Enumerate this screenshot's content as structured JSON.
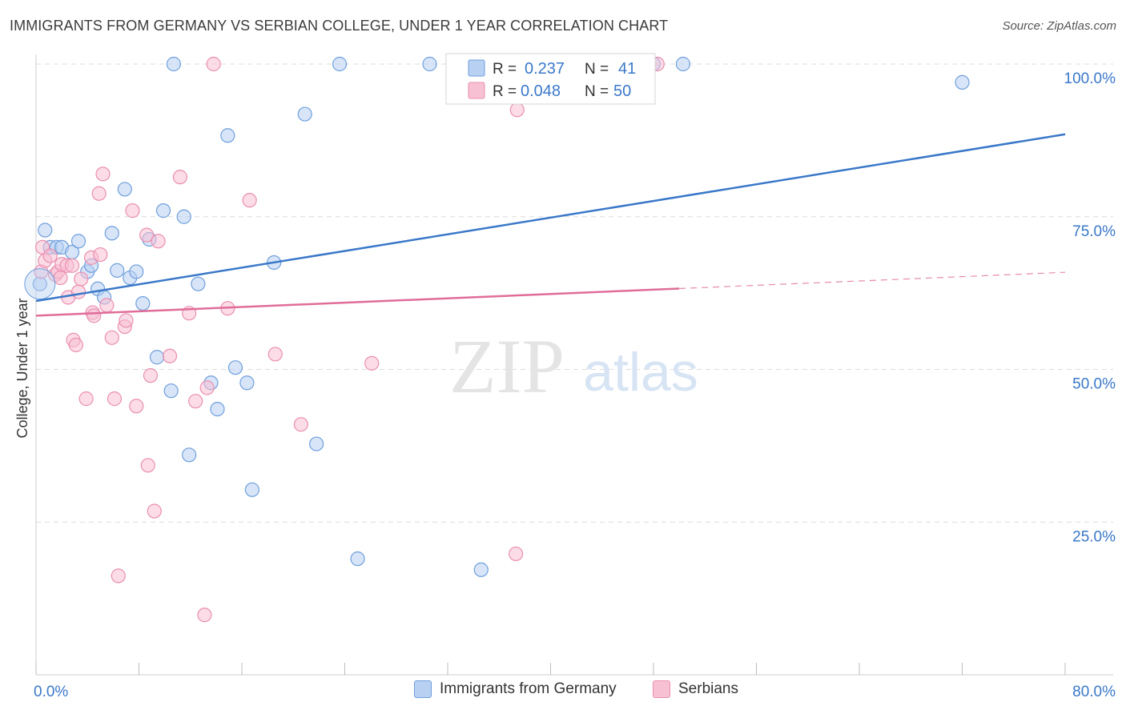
{
  "title": "IMMIGRANTS FROM GERMANY VS SERBIAN COLLEGE, UNDER 1 YEAR CORRELATION CHART",
  "source": "Source: ZipAtlas.com",
  "watermark": {
    "zip": "ZIP",
    "atlas": "atlas"
  },
  "colors": {
    "blue": "#3a78c9",
    "blue_fill": "#b8d0f2",
    "blue_stroke": "#6f9fdc",
    "pink": "#e06d98",
    "pink_fill": "#f8c0d3",
    "pink_stroke": "#ea8fb0",
    "axis_label": "#3a78c9",
    "grid": "#dcdcdc"
  },
  "stats_legend": [
    {
      "r_label": "R =",
      "r_value": "0.237",
      "n_label": "N =",
      "n_value": "41",
      "color": "blue"
    },
    {
      "r_label": "R =",
      "r_value": "0.048",
      "n_label": "N =",
      "n_value": "50",
      "color": "pink"
    }
  ],
  "bottom_legend": [
    {
      "label": "Immigrants from Germany",
      "color": "blue"
    },
    {
      "label": "Serbians",
      "color": "pink"
    }
  ],
  "chart_data": {
    "type": "scatter",
    "title": "IMMIGRANTS FROM GERMANY VS SERBIAN COLLEGE, UNDER 1 YEAR CORRELATION CHART",
    "xlabel": "",
    "ylabel": "College, Under 1 year",
    "xlim": [
      0,
      80
    ],
    "ylim": [
      0,
      100
    ],
    "x_tick_labels": [
      {
        "value": 0,
        "label": "0.0%"
      },
      {
        "value": 80,
        "label": "80.0%"
      }
    ],
    "y_tick_labels": [
      {
        "value": 100,
        "label": "100.0%"
      },
      {
        "value": 75,
        "label": "75.0%"
      },
      {
        "value": 50,
        "label": "50.0%"
      },
      {
        "value": 25,
        "label": "25.0%"
      }
    ],
    "x_minor_ticks": [
      0,
      8,
      16,
      24,
      32,
      40,
      48,
      56,
      64,
      72,
      80
    ],
    "grid": true,
    "legend_position": "top-center",
    "series": [
      {
        "name": "Immigrants from Germany",
        "color": "blue",
        "points": [
          [
            0.3,
            64.0
          ],
          [
            0.7,
            72.8
          ],
          [
            1.1,
            70.0
          ],
          [
            1.6,
            70.0
          ],
          [
            2.0,
            70.0
          ],
          [
            2.8,
            69.2
          ],
          [
            3.3,
            71.0
          ],
          [
            4.0,
            66.0
          ],
          [
            4.3,
            67.0
          ],
          [
            4.8,
            63.2
          ],
          [
            5.3,
            61.8
          ],
          [
            5.9,
            72.3
          ],
          [
            6.3,
            66.2
          ],
          [
            6.9,
            79.5
          ],
          [
            7.3,
            65.0
          ],
          [
            7.8,
            66.0
          ],
          [
            8.3,
            60.8
          ],
          [
            8.8,
            71.3
          ],
          [
            9.4,
            52.0
          ],
          [
            9.9,
            76.0
          ],
          [
            10.5,
            46.5
          ],
          [
            10.7,
            100.0
          ],
          [
            11.5,
            75.0
          ],
          [
            11.9,
            36.0
          ],
          [
            12.6,
            64.0
          ],
          [
            13.6,
            47.8
          ],
          [
            14.1,
            43.5
          ],
          [
            14.9,
            88.3
          ],
          [
            15.5,
            50.3
          ],
          [
            16.4,
            47.8
          ],
          [
            16.8,
            30.3
          ],
          [
            18.5,
            67.5
          ],
          [
            20.9,
            91.8
          ],
          [
            21.8,
            37.8
          ],
          [
            23.6,
            100.0
          ],
          [
            25.0,
            19.0
          ],
          [
            30.6,
            100.0
          ],
          [
            34.6,
            17.2
          ],
          [
            48.0,
            100.0
          ],
          [
            50.3,
            100.0
          ],
          [
            72.0,
            97.0
          ]
        ],
        "trend": {
          "x": [
            0,
            80
          ],
          "y": [
            61.2,
            88.5
          ],
          "dashed_after": null
        }
      },
      {
        "name": "Serbians",
        "color": "pink",
        "points": [
          [
            0.4,
            66.0
          ],
          [
            0.5,
            70.0
          ],
          [
            0.7,
            67.8
          ],
          [
            1.1,
            68.6
          ],
          [
            1.5,
            65.5
          ],
          [
            1.7,
            66.0
          ],
          [
            1.9,
            65.0
          ],
          [
            2.0,
            67.2
          ],
          [
            2.4,
            67.0
          ],
          [
            2.5,
            61.8
          ],
          [
            2.8,
            67.0
          ],
          [
            2.9,
            54.8
          ],
          [
            3.1,
            54.0
          ],
          [
            3.3,
            62.7
          ],
          [
            3.5,
            64.8
          ],
          [
            3.9,
            45.2
          ],
          [
            4.3,
            68.3
          ],
          [
            4.4,
            59.3
          ],
          [
            4.5,
            58.8
          ],
          [
            4.9,
            78.8
          ],
          [
            5.0,
            68.8
          ],
          [
            5.2,
            82.0
          ],
          [
            5.5,
            60.5
          ],
          [
            5.9,
            55.2
          ],
          [
            6.1,
            45.2
          ],
          [
            6.4,
            16.2
          ],
          [
            6.9,
            57.0
          ],
          [
            7.0,
            58.0
          ],
          [
            7.5,
            76.0
          ],
          [
            7.8,
            44.0
          ],
          [
            8.6,
            72.0
          ],
          [
            8.7,
            34.3
          ],
          [
            8.9,
            49.0
          ],
          [
            9.2,
            26.8
          ],
          [
            9.5,
            71.0
          ],
          [
            10.4,
            52.2
          ],
          [
            11.2,
            81.5
          ],
          [
            11.9,
            59.2
          ],
          [
            12.4,
            44.8
          ],
          [
            13.1,
            9.8
          ],
          [
            13.3,
            47.0
          ],
          [
            13.8,
            100.0
          ],
          [
            14.9,
            60.0
          ],
          [
            16.6,
            77.7
          ],
          [
            18.6,
            52.5
          ],
          [
            20.6,
            41.0
          ],
          [
            26.1,
            51.0
          ],
          [
            37.3,
            19.8
          ],
          [
            37.4,
            92.5
          ],
          [
            48.3,
            100.0
          ]
        ],
        "trend": {
          "x": [
            0,
            80
          ],
          "y": [
            58.8,
            65.9
          ],
          "dashed_after": 50
        }
      }
    ]
  }
}
